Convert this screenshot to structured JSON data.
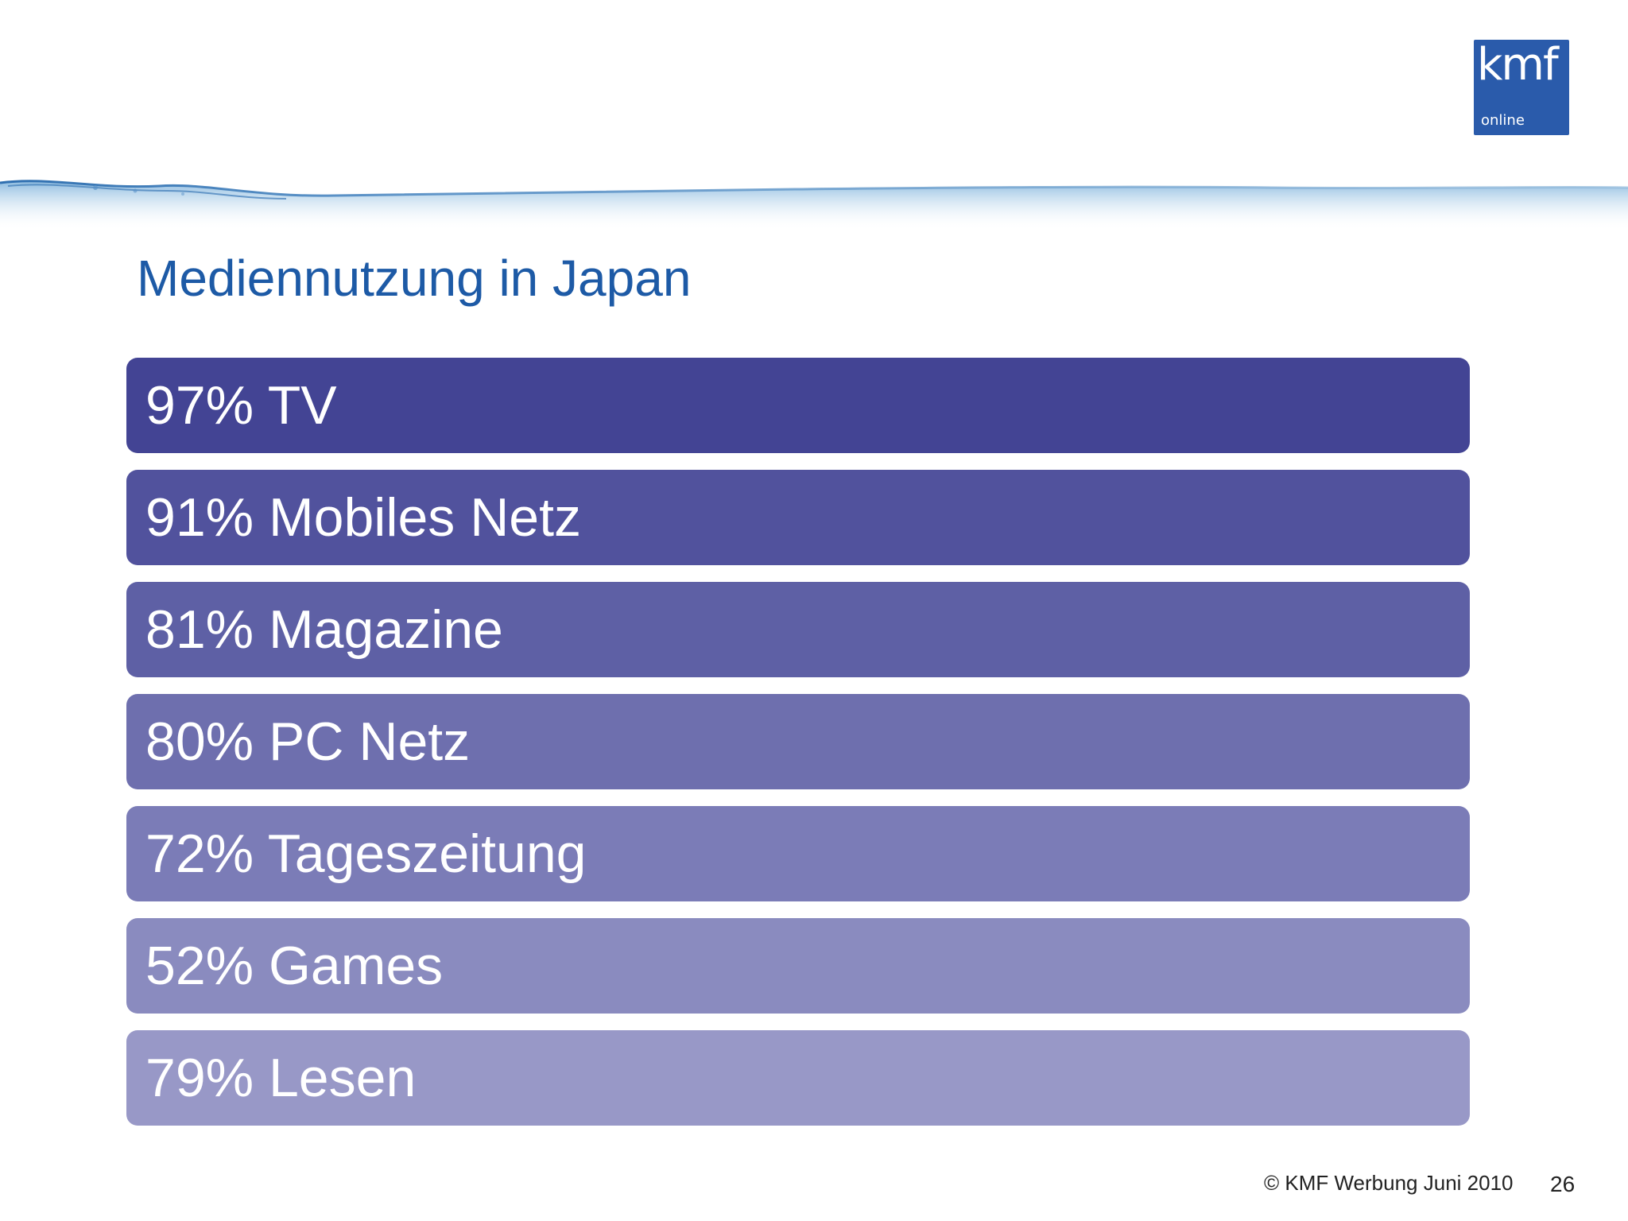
{
  "logo": {
    "main": "kmf",
    "sub": "online",
    "color": "#2a5bab"
  },
  "title": "Mediennutzung in Japan",
  "title_color": "#1d5aa6",
  "bars": [
    {
      "label": "97% TV",
      "color": "#434494"
    },
    {
      "label": "91% Mobiles Netz",
      "color": "#51529d"
    },
    {
      "label": "81% Magazine",
      "color": "#5e60a5"
    },
    {
      "label": "80% PC Netz",
      "color": "#6e6fae"
    },
    {
      "label": "72% Tageszeitung",
      "color": "#7b7cb7"
    },
    {
      "label": "52% Games",
      "color": "#8a8bbf"
    },
    {
      "label": "79% Lesen",
      "color": "#9898c7"
    }
  ],
  "footer": {
    "copyright": "© KMF Werbung Juni 2010",
    "page": "26"
  }
}
